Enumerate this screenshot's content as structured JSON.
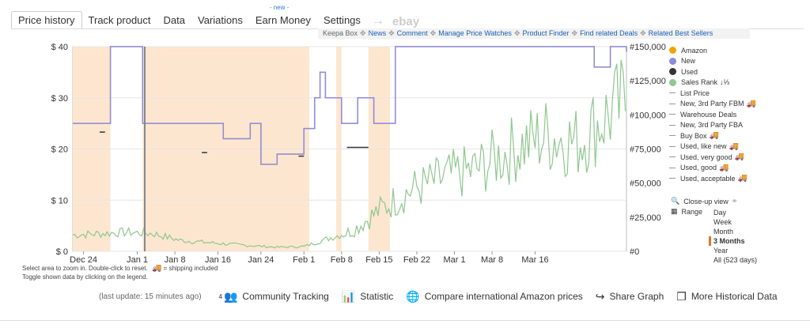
{
  "tabs": [
    {
      "label": "Price history",
      "active": true
    },
    {
      "label": "Track product"
    },
    {
      "label": "Data"
    },
    {
      "label": "Variations"
    },
    {
      "label": "Earn Money",
      "badge": "- new -"
    },
    {
      "label": "Settings"
    }
  ],
  "arrow": "→",
  "ebay": "ebay",
  "links": {
    "keepa_box": "Keepa Box",
    "items": [
      "News",
      "Comment",
      "Manage Price Watches",
      "Product Finder",
      "Find related Deals",
      "Related Best Sellers"
    ]
  },
  "chart_data": {
    "type": "line",
    "x_ticks": [
      "Dec 24",
      "Jan 1",
      "Jan 8",
      "Jan 16",
      "Jan 24",
      "Feb 1",
      "Feb 8",
      "Feb 15",
      "Feb 22",
      "Mar 1",
      "Mar 8",
      "Mar 16"
    ],
    "y_left_ticks": [
      "$ 40",
      "$ 30",
      "$ 20",
      "$ 10",
      "$ 0"
    ],
    "y_right_ticks": [
      "#150,000",
      "#125,000",
      "#100,000",
      "#75,000",
      "#50,000",
      "#25,000",
      "#0"
    ],
    "ylim_price": [
      0,
      40
    ],
    "ylim_rank": [
      0,
      150000
    ],
    "series": [
      {
        "name": "Amazon",
        "color": "#f0a30a",
        "points": [
          [
            0,
            25
          ],
          [
            7,
            25
          ],
          [
            7,
            40
          ],
          [
            13,
            40
          ],
          [
            13,
            25
          ],
          [
            28,
            25
          ],
          [
            28,
            22
          ],
          [
            33,
            22
          ],
          [
            33,
            25
          ],
          [
            35,
            25
          ],
          [
            35,
            17
          ],
          [
            38,
            17
          ],
          [
            38,
            19
          ],
          [
            43,
            19
          ],
          [
            43,
            24
          ],
          [
            45,
            24
          ],
          [
            45,
            30
          ],
          [
            46,
            30
          ],
          [
            46,
            35
          ],
          [
            47,
            35
          ],
          [
            47,
            30
          ],
          [
            50,
            30
          ],
          [
            50,
            25
          ],
          [
            53,
            25
          ],
          [
            53,
            30
          ],
          [
            56,
            30
          ],
          [
            56,
            25
          ],
          [
            60,
            25
          ],
          [
            60,
            40
          ],
          [
            97,
            40
          ],
          [
            97,
            36
          ],
          [
            100,
            36
          ],
          [
            100,
            40
          ],
          [
            103,
            40
          ],
          [
            103,
            39
          ]
        ]
      },
      {
        "name": "New",
        "color": "#8b8be0",
        "points": [
          [
            0,
            25
          ],
          [
            7,
            25
          ],
          [
            7,
            40
          ],
          [
            13,
            40
          ],
          [
            13,
            25
          ],
          [
            28,
            25
          ],
          [
            28,
            22
          ],
          [
            33,
            22
          ],
          [
            33,
            25
          ],
          [
            35,
            25
          ],
          [
            35,
            17
          ],
          [
            38,
            17
          ],
          [
            38,
            19
          ],
          [
            43,
            19
          ],
          [
            43,
            24
          ],
          [
            45,
            24
          ],
          [
            45,
            30
          ],
          [
            46,
            30
          ],
          [
            46,
            35
          ],
          [
            47,
            35
          ],
          [
            47,
            30
          ],
          [
            50,
            30
          ],
          [
            50,
            25
          ],
          [
            53,
            25
          ],
          [
            53,
            30
          ],
          [
            56,
            30
          ],
          [
            56,
            25
          ],
          [
            60,
            25
          ],
          [
            60,
            40
          ],
          [
            97,
            40
          ],
          [
            97,
            36
          ],
          [
            100,
            36
          ],
          [
            100,
            40
          ],
          [
            103,
            40
          ],
          [
            103,
            39
          ]
        ]
      },
      {
        "name": "Used",
        "color": "#333333",
        "segments": [
          [
            [
              5,
              23.3
            ],
            [
              6,
              23.3
            ]
          ],
          [
            [
              24,
              19.3
            ],
            [
              25,
              19.3
            ]
          ],
          [
            [
              42,
              18.6
            ],
            [
              43,
              18.6
            ]
          ],
          [
            [
              51,
              20.3
            ],
            [
              55,
              20.3
            ]
          ]
        ]
      },
      {
        "name": "Sales Rank",
        "color": "#8fc78f",
        "trend": [
          [
            0,
            12000
          ],
          [
            10,
            14000
          ],
          [
            15,
            13000
          ],
          [
            20,
            8000
          ],
          [
            30,
            5000
          ],
          [
            38,
            3000
          ],
          [
            43,
            3500
          ],
          [
            48,
            10000
          ],
          [
            52,
            15000
          ],
          [
            57,
            30000
          ],
          [
            63,
            45000
          ],
          [
            70,
            55000
          ],
          [
            75,
            60000
          ],
          [
            82,
            75000
          ],
          [
            88,
            85000
          ],
          [
            94,
            80000
          ],
          [
            98,
            95000
          ],
          [
            103,
            110000
          ]
        ]
      }
    ],
    "shading": [
      [
        0,
        7
      ],
      [
        13,
        44
      ],
      [
        49,
        50
      ],
      [
        55,
        59
      ]
    ]
  },
  "legend": [
    {
      "label": "Amazon",
      "type": "dot",
      "color": "#f0a30a"
    },
    {
      "label": "New",
      "type": "dot",
      "color": "#8b8be0"
    },
    {
      "label": "Used",
      "type": "dot",
      "color": "#333333"
    },
    {
      "label": "Sales Rank",
      "type": "dot",
      "color": "#8fc78f",
      "suffix": "↓⅓"
    },
    {
      "label": "List Price",
      "type": "dash"
    },
    {
      "label": "New, 3rd Party FBM",
      "type": "dash",
      "truck": true
    },
    {
      "label": "Warehouse Deals",
      "type": "dash"
    },
    {
      "label": "New, 3rd Party FBA",
      "type": "dash"
    },
    {
      "label": "Buy Box",
      "type": "dash",
      "truck": true
    },
    {
      "label": "Used, like new",
      "type": "dash",
      "truck": true
    },
    {
      "label": "Used, very good",
      "type": "dash",
      "truck": true
    },
    {
      "label": "Used, good",
      "type": "dash",
      "truck": true
    },
    {
      "label": "Used, acceptable",
      "type": "dash",
      "truck": true
    }
  ],
  "controls": {
    "closeup": "Close-up view",
    "range": "Range",
    "range_options": [
      "Day",
      "Week",
      "Month",
      "3 Months",
      "Year",
      "All (523 days)"
    ],
    "range_selected": "3 Months"
  },
  "hints": {
    "line1": "Select area to zoom in. Double-click to reset.",
    "shipping": "= shipping included",
    "line2": "Toggle shown data by clicking on the legend."
  },
  "footer": {
    "last_update": "(last update: 15 minutes ago)",
    "community_count": "4",
    "community": "Community Tracking",
    "statistic": "Statistic",
    "compare": "Compare international Amazon prices",
    "share": "Share Graph",
    "more": "More Historical Data"
  }
}
